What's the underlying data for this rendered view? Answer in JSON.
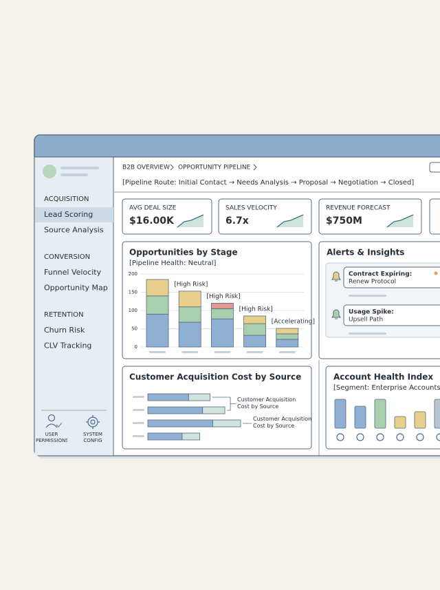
{
  "breadcrumb": [
    "B2B OVERVIEW",
    "OPPORTUNITY PIPELINE"
  ],
  "route": "[Pipeline Route: Initial Contact → Needs Analysis → Proposal → Negotiation → Closed]",
  "sidebar": {
    "sections": [
      {
        "title": "ACQUISITION",
        "items": [
          "Lead Scoring",
          "Source Analysis"
        ]
      },
      {
        "title": "CONVERSION",
        "items": [
          "Funnel Velocity",
          "Opportunity Map"
        ]
      },
      {
        "title": "RETENTION",
        "items": [
          "Churn Risk",
          "CLV Tracking"
        ]
      }
    ],
    "footer": [
      "USER PERMISSIONS",
      "SYSTEM CONFIG"
    ]
  },
  "kpis": [
    {
      "label": "AVG DEAL SIZE",
      "value": "$16.00K"
    },
    {
      "label": "SALES VELOCITY",
      "value": "6.7x"
    },
    {
      "label": "REVENUE FORECAST",
      "value": "$750M"
    }
  ],
  "stage_chart": {
    "type": "bar",
    "title": "Opportunities by Stage",
    "subtitle": "[Pipeline Health: Neutral]",
    "categories": [
      null,
      null,
      null,
      null,
      null
    ],
    "series": [
      {
        "color": "#8fb0d2",
        "values": [
          90,
          68,
          77,
          32,
          21
        ]
      },
      {
        "color": "#a9cfae",
        "values": [
          50,
          42,
          28,
          32,
          15
        ]
      },
      {
        "color": "#e8cf8c",
        "values": [
          45,
          43,
          null,
          21,
          15
        ]
      },
      {
        "color": "#e39a94",
        "values": [
          null,
          null,
          15,
          null,
          null
        ]
      }
    ],
    "annotations": [
      null,
      "[High Risk]",
      "[High Risk]",
      "[High Risk]",
      "[Accelerating]"
    ],
    "ylim": [
      0,
      200
    ],
    "yticks": [
      0,
      50,
      100,
      150,
      200
    ],
    "grid": true
  },
  "alerts": {
    "title": "Alerts & Insights",
    "items": [
      {
        "title": "Contract Expiring:",
        "detail": "Renew Protocol"
      },
      {
        "title": "Usage Spike:",
        "detail": "Upsell Path"
      }
    ]
  },
  "cac_chart": {
    "type": "bar",
    "title": "Customer Acquisition Cost by Source",
    "categories": [
      null,
      null,
      null,
      null
    ],
    "series": [
      {
        "color": "#8fb0d2",
        "values": [
          44,
          59,
          70,
          37
        ]
      },
      {
        "color": "#cfe3dc",
        "values": [
          23,
          24,
          30,
          19
        ]
      }
    ],
    "annotations": [
      "Customer Acquisition Cost by Source",
      "Customer Acquisition Cost by Source"
    ],
    "xlim": [
      0,
      100
    ]
  },
  "health_chart": {
    "type": "bar",
    "title": "Account Health Index",
    "subtitle": "[Segment: Enterprise Accounts]",
    "categories": [
      null,
      null,
      null,
      null,
      null,
      null
    ],
    "values": [
      42,
      32,
      42,
      17,
      24,
      42
    ],
    "colors": [
      "#8fb0d2",
      "#8fb0d2",
      "#a9cfae",
      "#e8cf8c",
      "#e8cf8c",
      "#b8c4d0"
    ],
    "ylim": [
      0,
      50
    ]
  }
}
